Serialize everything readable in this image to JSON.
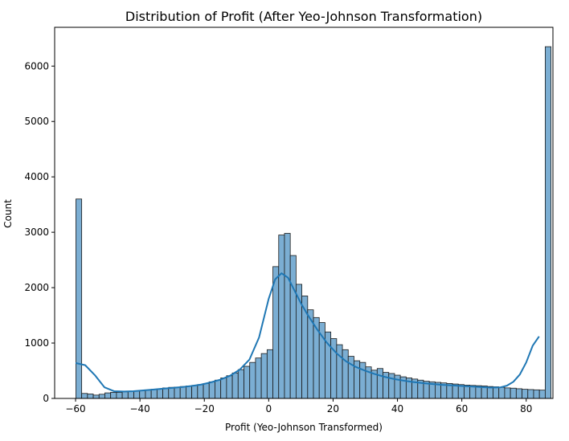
{
  "chart_data": {
    "type": "bar",
    "subtype": "histogram-with-kde",
    "title": "Distribution of Profit (After Yeo-Johnson Transformation)",
    "xlabel": "Profit (Yeo-Johnson Transformed)",
    "ylabel": "Count",
    "xlim": [
      -66.5,
      88.3
    ],
    "ylim": [
      0,
      6700
    ],
    "xticks": [
      -60,
      -40,
      -20,
      0,
      20,
      40,
      60,
      80
    ],
    "xtick_labels": [
      "−60",
      "−40",
      "−20",
      "0",
      "20",
      "40",
      "60",
      "80"
    ],
    "yticks": [
      0,
      1000,
      2000,
      3000,
      4000,
      5000,
      6000
    ],
    "ytick_labels": [
      "0",
      "1000",
      "2000",
      "3000",
      "4000",
      "5000",
      "6000"
    ],
    "grid": false,
    "legend": "none",
    "bar_color": "#7BAED3",
    "bar_edge_color": "#1A1A1A",
    "kde_color": "#1F77B4",
    "bins": {
      "start": -59.9,
      "width": 1.8,
      "counts": [
        3600,
        90,
        80,
        60,
        75,
        100,
        110,
        110,
        120,
        125,
        130,
        140,
        150,
        165,
        175,
        190,
        200,
        205,
        215,
        225,
        235,
        250,
        270,
        300,
        330,
        370,
        410,
        460,
        520,
        580,
        650,
        730,
        810,
        880,
        2380,
        2950,
        2980,
        2580,
        2060,
        1850,
        1600,
        1460,
        1370,
        1200,
        1080,
        970,
        880,
        760,
        680,
        650,
        570,
        510,
        540,
        470,
        450,
        420,
        390,
        370,
        350,
        330,
        310,
        300,
        290,
        280,
        270,
        260,
        250,
        240,
        235,
        230,
        225,
        215,
        210,
        200,
        190,
        185,
        175,
        165,
        160,
        155,
        150,
        6350
      ]
    },
    "kde": {
      "x": [
        -60,
        -57,
        -54,
        -51,
        -48,
        -45,
        -42,
        -39,
        -36,
        -33,
        -30,
        -27,
        -24,
        -21,
        -18,
        -15,
        -12,
        -9,
        -6,
        -3,
        0,
        2,
        4,
        6,
        8,
        10,
        12,
        15,
        18,
        21,
        24,
        27,
        30,
        33,
        36,
        39,
        42,
        45,
        48,
        51,
        54,
        57,
        60,
        63,
        66,
        69,
        72,
        74,
        76,
        78,
        80,
        82,
        84
      ],
      "y": [
        640,
        600,
        420,
        200,
        130,
        125,
        130,
        145,
        160,
        175,
        190,
        205,
        225,
        250,
        290,
        340,
        410,
        520,
        700,
        1100,
        1800,
        2150,
        2260,
        2180,
        1950,
        1720,
        1520,
        1250,
        1010,
        820,
        670,
        570,
        500,
        440,
        390,
        350,
        320,
        295,
        275,
        260,
        245,
        235,
        225,
        215,
        205,
        195,
        200,
        230,
        300,
        430,
        650,
        950,
        1120
      ]
    }
  }
}
